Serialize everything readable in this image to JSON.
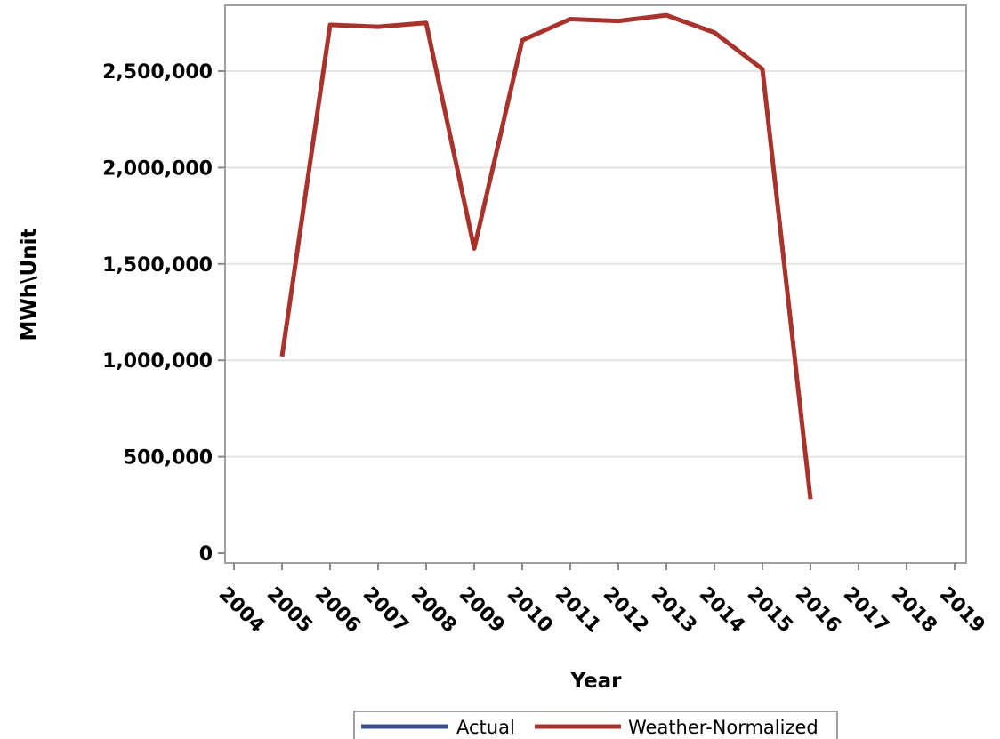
{
  "chart_data": {
    "type": "line",
    "title": "",
    "xlabel": "Year",
    "ylabel": "MWh\\Unit",
    "x": [
      2004,
      2005,
      2006,
      2007,
      2008,
      2009,
      2010,
      2011,
      2012,
      2013,
      2014,
      2015,
      2016,
      2017,
      2018,
      2019
    ],
    "xlim": [
      2004,
      2019
    ],
    "ylim": [
      0,
      2800000
    ],
    "yticks": [
      0,
      500000,
      1000000,
      1500000,
      2000000,
      2500000
    ],
    "ytick_labels": [
      "0",
      "500,000",
      "1,000,000",
      "1,500,000",
      "2,000,000",
      "2,500,000"
    ],
    "grid": "horizontal",
    "legend_position": "bottom",
    "series": [
      {
        "name": "Actual",
        "color": "#3b4d8f",
        "x": [],
        "values": []
      },
      {
        "name": "Weather-Normalized",
        "color": "#a8332c",
        "x": [
          2005,
          2006,
          2007,
          2008,
          2009,
          2010,
          2011,
          2012,
          2013,
          2014,
          2015,
          2016
        ],
        "values": [
          1020000,
          2740000,
          2730000,
          2750000,
          1580000,
          2660000,
          2770000,
          2760000,
          2790000,
          2700000,
          2510000,
          280000
        ]
      }
    ]
  }
}
